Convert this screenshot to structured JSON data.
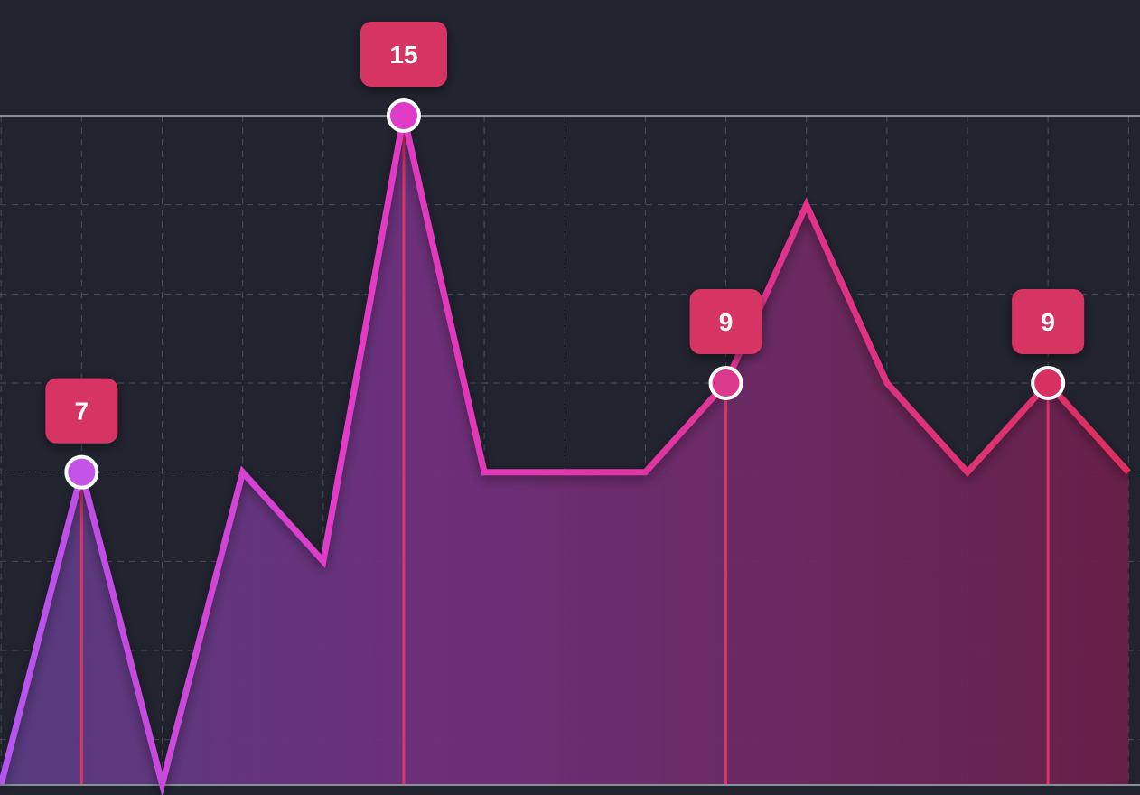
{
  "chart_data": {
    "type": "area",
    "title": "",
    "xlabel": "",
    "ylabel": "",
    "x": [
      0,
      1,
      2,
      3,
      4,
      5,
      6,
      7,
      8,
      9,
      10,
      11,
      12,
      13,
      14
    ],
    "values": [
      0,
      7,
      0,
      7,
      5,
      15,
      7,
      7,
      7,
      9,
      13,
      9,
      7,
      9,
      7
    ],
    "ylim": [
      0,
      15
    ],
    "annotations": [
      {
        "index": 1,
        "label": "7"
      },
      {
        "index": 5,
        "label": "15"
      },
      {
        "index": 9,
        "label": "9"
      },
      {
        "index": 13,
        "label": "9"
      }
    ],
    "grid": true,
    "legend": "none",
    "colors": {
      "background": "#21232f",
      "grid": "#55606a",
      "line_start": "#b455ee",
      "line_mid": "#e03cc8",
      "line_end": "#dc2f5c",
      "label_box": "#d63463",
      "stem": "#dc3464"
    }
  }
}
